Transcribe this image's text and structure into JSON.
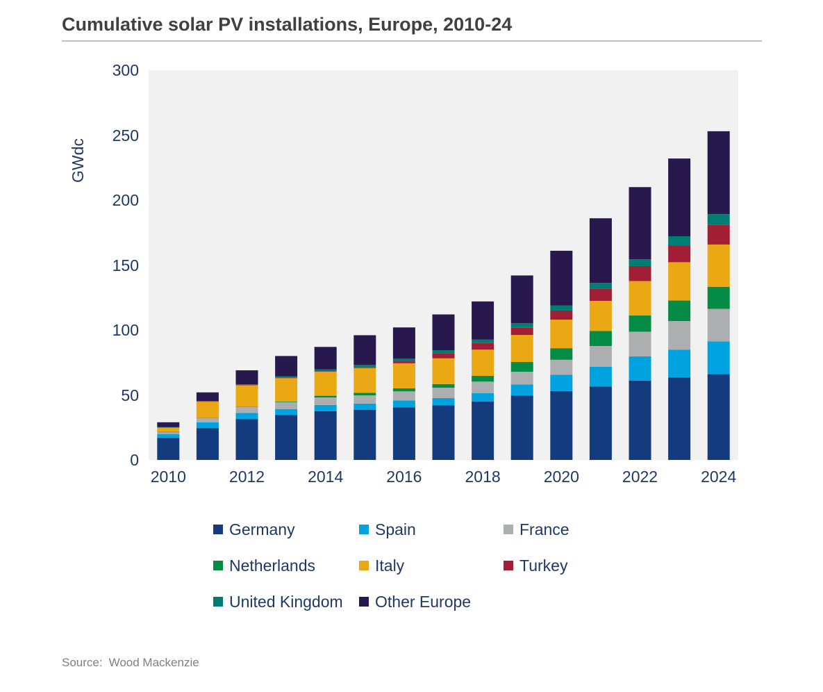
{
  "title": "Cumulative solar PV installations, Europe, 2010-24",
  "source": {
    "label": "Source:",
    "value": "Wood Mackenzie"
  },
  "y_axis": {
    "label": "GWdc",
    "ticks": [
      0,
      50,
      100,
      150,
      200,
      250,
      300
    ]
  },
  "x_axis": {
    "tick_labels": [
      "2010",
      "2012",
      "2014",
      "2016",
      "2018",
      "2020",
      "2022",
      "2024"
    ]
  },
  "colors": {
    "plot_background": "#f1f1f1",
    "axis_text": "#1f3864",
    "title_text": "#404040",
    "source_text": "#7f7f7f"
  },
  "chart_data": {
    "type": "bar",
    "stacked": true,
    "title": "Cumulative solar PV installations, Europe, 2010-24",
    "xlabel": "",
    "ylabel": "GWdc",
    "ylim": [
      0,
      300
    ],
    "grid": false,
    "legend_position": "bottom",
    "categories": [
      2010,
      2011,
      2012,
      2013,
      2014,
      2015,
      2016,
      2017,
      2018,
      2019,
      2020,
      2021,
      2022,
      2023,
      2024
    ],
    "series": [
      {
        "name": "Germany",
        "color": "#133b7e",
        "values": [
          17.0,
          24.5,
          31.5,
          34.5,
          37.5,
          38.5,
          40.5,
          42.0,
          45.0,
          49.5,
          53.0,
          56.5,
          61.0,
          63.5,
          66.0
        ]
      },
      {
        "name": "Spain",
        "color": "#00a3e0",
        "values": [
          3.0,
          4.4,
          4.6,
          4.7,
          4.8,
          4.9,
          5.3,
          5.6,
          6.5,
          8.6,
          12.5,
          15.2,
          18.7,
          21.4,
          25.3
        ]
      },
      {
        "name": "France",
        "color": "#acaeb0",
        "values": [
          1.5,
          3.4,
          4.6,
          5.3,
          5.8,
          6.3,
          7.0,
          8.0,
          8.8,
          9.8,
          11.6,
          16.0,
          19.0,
          22.0,
          25.0
        ]
      },
      {
        "name": "Netherlands",
        "color": "#048b45",
        "values": [
          0.1,
          0.2,
          0.3,
          0.5,
          1.3,
          2.0,
          2.3,
          2.8,
          4.4,
          7.5,
          8.9,
          11.5,
          12.5,
          15.8,
          17.0
        ]
      },
      {
        "name": "Italy",
        "color": "#eaa814",
        "values": [
          3.5,
          12.5,
          16.5,
          18.0,
          18.5,
          19.0,
          19.3,
          19.8,
          20.2,
          20.8,
          22.0,
          23.2,
          26.5,
          29.5,
          32.5
        ]
      },
      {
        "name": "Turkey",
        "color": "#a21e34",
        "values": [
          0.1,
          0.1,
          0.2,
          0.2,
          0.4,
          0.6,
          1.5,
          4.0,
          5.0,
          5.5,
          7.0,
          9.5,
          11.5,
          13.0,
          15.0
        ]
      },
      {
        "name": "United Kingdom",
        "color": "#007d72",
        "values": [
          0.2,
          0.3,
          0.5,
          1.2,
          1.5,
          1.8,
          2.0,
          2.3,
          2.7,
          3.5,
          3.8,
          4.4,
          5.3,
          7.0,
          8.4
        ]
      },
      {
        "name": "Other Europe",
        "color": "#27194d",
        "values": [
          3.6,
          6.6,
          10.8,
          15.6,
          17.2,
          22.9,
          24.1,
          27.5,
          29.4,
          36.8,
          42.2,
          49.7,
          55.5,
          59.8,
          63.8
        ]
      }
    ],
    "totals": [
      29,
      52,
      69,
      80,
      87,
      96,
      102,
      112,
      122,
      142,
      161,
      186,
      210,
      232,
      253
    ]
  }
}
